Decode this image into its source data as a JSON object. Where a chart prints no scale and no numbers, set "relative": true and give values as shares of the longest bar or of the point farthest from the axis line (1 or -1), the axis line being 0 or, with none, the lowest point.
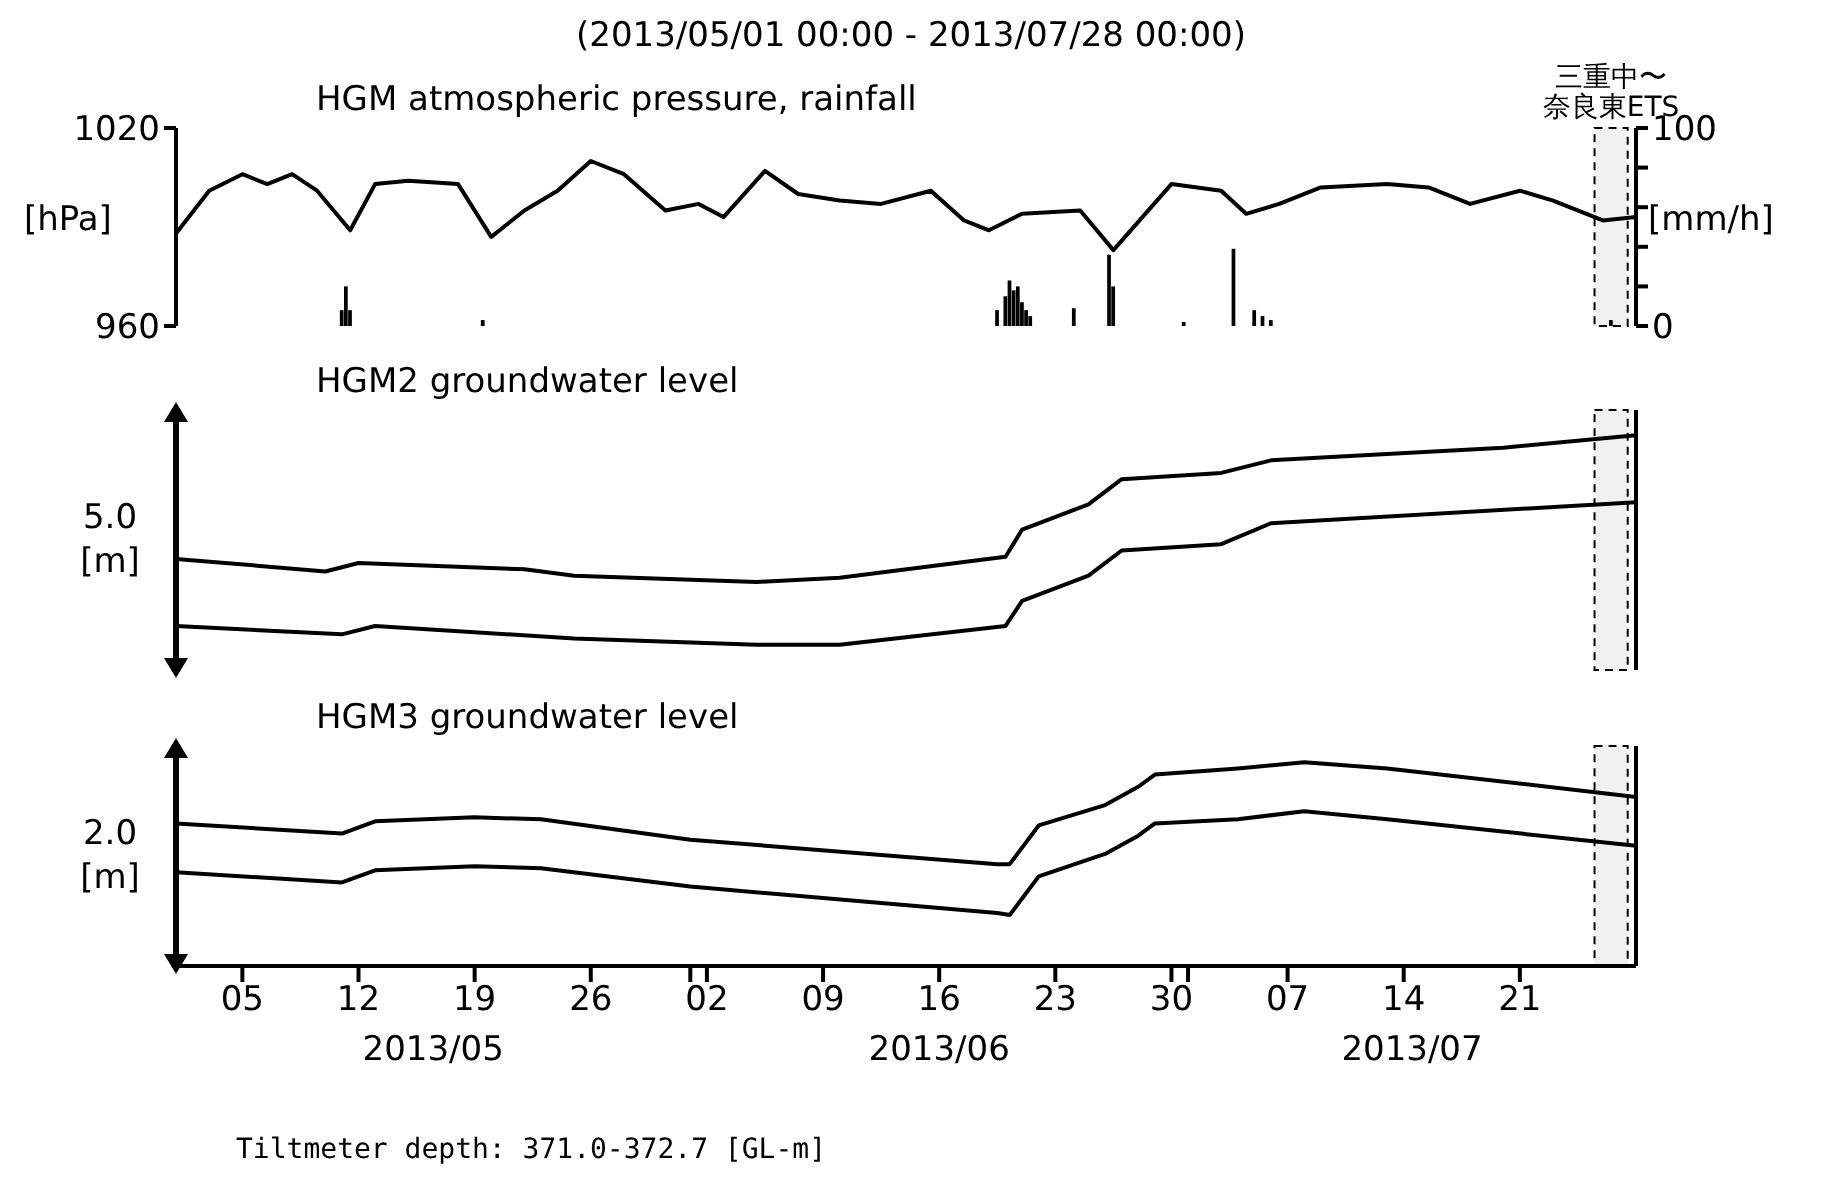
{
  "chart_data": [
    {
      "type": "line",
      "title": "(2013/05/01 00:00 - 2013/07/28 00:00)",
      "subtitle": "HGM atmospheric pressure, rainfall",
      "ylabel": "[hPa]",
      "y2label": "[mm/h]",
      "xlim": [
        "2013-05-01",
        "2013-07-28"
      ],
      "ylim": [
        960,
        1020
      ],
      "yticks": [
        960,
        1020
      ],
      "y2lim": [
        0,
        100
      ],
      "y2ticks": [
        0,
        {
          "value": 20,
          "label": null
        },
        {
          "value": 40,
          "label": null
        },
        {
          "value": 60,
          "label": null
        },
        {
          "value": 80,
          "label": null
        },
        100
      ],
      "tick_labels": "y",
      "bands": [
        {
          "axis": "x",
          "from": "2013-07-25T12:00",
          "to": "2013-07-27T12:00",
          "label": "三重中〜奈良東ETS",
          "color": "#eeeeee"
        }
      ],
      "series": [
        {
          "color": "#000000",
          "x": [
            "2013-05-01",
            "2013-05-03",
            "2013-05-05",
            "2013-05-06T12:00",
            "2013-05-08",
            "2013-05-09T12:00",
            "2013-05-11T12:00",
            "2013-05-13",
            "2013-05-15",
            "2013-05-18",
            "2013-05-20",
            "2013-05-22",
            "2013-05-24",
            "2013-05-26",
            "2013-05-28",
            "2013-05-30T12:00",
            "2013-06-01T12:00",
            "2013-06-03",
            "2013-06-05T12:00",
            "2013-06-07T12:00",
            "2013-06-10",
            "2013-06-12T12:00",
            "2013-06-15T12:00",
            "2013-06-17T12:00",
            "2013-06-19",
            "2013-06-21",
            "2013-06-24T12:00",
            "2013-06-26T12:00",
            "2013-06-30",
            "2013-07-03",
            "2013-07-04T12:00",
            "2013-07-06T12:00",
            "2013-07-09",
            "2013-07-13",
            "2013-07-15T12:00",
            "2013-07-18",
            "2013-07-21",
            "2013-07-23",
            "2013-07-26",
            "2013-07-28"
          ],
          "values": [
            988,
            1001,
            1006,
            1003,
            1006,
            1001,
            989,
            1003,
            1004,
            1003,
            987,
            995,
            1001,
            1010,
            1006,
            995,
            997,
            993,
            1007,
            1000,
            998,
            997,
            1001,
            992,
            989,
            994,
            995,
            983,
            1003,
            1001,
            994,
            997,
            1002,
            1003,
            1002,
            997,
            1001,
            998,
            992,
            993
          ]
        },
        {
          "type": "bar",
          "axis": "y2",
          "color": "#000000",
          "x": [
            "2013-05-11",
            "2013-05-11T06:00",
            "2013-05-11T12:00",
            "2013-05-19T12:00",
            "2013-06-19T12:00",
            "2013-06-20",
            "2013-06-20T06:00",
            "2013-06-20T12:00",
            "2013-06-20T18:00",
            "2013-06-21",
            "2013-06-21T06:00",
            "2013-06-21T12:00",
            "2013-06-24T03:00",
            "2013-06-26T06:00",
            "2013-06-26T12:00",
            "2013-06-30T18:00",
            "2013-07-03T18:00",
            "2013-07-05",
            "2013-07-05T12:00",
            "2013-07-06",
            "2013-07-26T12:00"
          ],
          "values": [
            8,
            20,
            8,
            3,
            8,
            15,
            23,
            18,
            20,
            12,
            8,
            5,
            9,
            36,
            20,
            2,
            39,
            8,
            5,
            3,
            3
          ]
        }
      ]
    },
    {
      "type": "line",
      "title": "HGM2 groundwater level",
      "relative": true,
      "xlim": [
        "2013-05-01",
        "2013-07-28"
      ],
      "tick_labels": false,
      "annotations": [
        "5.0 [m]"
      ],
      "bands": [
        {
          "axis": "x",
          "from": "2013-07-25T12:00",
          "to": "2013-07-27T12:00",
          "color": "#eeeeee"
        }
      ],
      "series": [
        {
          "color": "#000000",
          "x": [
            "2013-05-01",
            "2013-05-10",
            "2013-05-12",
            "2013-05-22",
            "2013-05-25",
            "2013-06-05",
            "2013-06-10",
            "2013-06-20",
            "2013-06-21",
            "2013-06-25",
            "2013-06-27",
            "2013-07-03",
            "2013-07-06",
            "2013-07-20",
            "2013-07-28"
          ],
          "values": [
            0.41,
            0.35,
            0.39,
            0.36,
            0.33,
            0.3,
            0.32,
            0.42,
            0.55,
            0.67,
            0.79,
            0.82,
            0.88,
            0.94,
            1
          ]
        },
        {
          "color": "#000000",
          "x": [
            "2013-05-01",
            "2013-05-11",
            "2013-05-13",
            "2013-05-25",
            "2013-06-05",
            "2013-06-10",
            "2013-06-20",
            "2013-06-21",
            "2013-06-25",
            "2013-06-27",
            "2013-07-03",
            "2013-07-06",
            "2013-07-28"
          ],
          "values": [
            0.09,
            0.05,
            0.09,
            0.03,
            0,
            0,
            0.09,
            0.21,
            0.33,
            0.45,
            0.48,
            0.58,
            0.68
          ]
        }
      ]
    },
    {
      "type": "line",
      "title": "HGM3 groundwater level",
      "relative": true,
      "xlim": [
        "2013-05-01",
        "2013-07-28"
      ],
      "tick_labels": "x",
      "xticks": [
        {
          "value": "2013-05-05",
          "label": "05"
        },
        {
          "value": "2013-05-12",
          "label": "12"
        },
        {
          "value": "2013-05-19",
          "label": "19"
        },
        {
          "value": "2013-05-26",
          "label": "26"
        },
        {
          "value": "2013-06-01",
          "label": null
        },
        {
          "value": "2013-06-02",
          "label": "02"
        },
        {
          "value": "2013-06-09",
          "label": "09"
        },
        {
          "value": "2013-06-16",
          "label": "16"
        },
        {
          "value": "2013-06-23",
          "label": "23"
        },
        {
          "value": "2013-06-30",
          "label": "30"
        },
        {
          "value": "2013-07-01",
          "label": null
        },
        {
          "value": "2013-07-07",
          "label": "07"
        },
        {
          "value": "2013-07-14",
          "label": "14"
        },
        {
          "value": "2013-07-21",
          "label": "21"
        }
      ],
      "annotations": [
        "2.0 [m]",
        "2013/05",
        "2013/06",
        "2013/07",
        "Tiltmeter depth: 371.0-372.7 [GL-m]"
      ],
      "bands": [
        {
          "axis": "x",
          "from": "2013-07-25T12:00",
          "to": "2013-07-27T12:00",
          "color": "#eeeeee"
        }
      ],
      "series": [
        {
          "color": "#000000",
          "x": [
            "2013-05-01",
            "2013-05-11",
            "2013-05-13",
            "2013-05-19",
            "2013-05-23",
            "2013-06-01",
            "2013-06-19T12:00",
            "2013-06-20T06:00",
            "2013-06-22",
            "2013-06-26",
            "2013-06-28",
            "2013-06-29",
            "2013-07-04",
            "2013-07-08",
            "2013-07-13",
            "2013-07-28"
          ],
          "values": [
            0.7,
            0.65,
            0.71,
            0.73,
            0.72,
            0.62,
            0.5,
            0.5,
            0.69,
            0.79,
            0.88,
            0.94,
            0.97,
            1,
            0.97,
            0.83
          ]
        },
        {
          "color": "#000000",
          "x": [
            "2013-05-01",
            "2013-05-11",
            "2013-05-13",
            "2013-05-19",
            "2013-05-23",
            "2013-06-01",
            "2013-06-19T12:00",
            "2013-06-20T06:00",
            "2013-06-22",
            "2013-06-26",
            "2013-06-28",
            "2013-06-29",
            "2013-07-04",
            "2013-07-08",
            "2013-07-13",
            "2013-07-28"
          ],
          "values": [
            0.46,
            0.41,
            0.47,
            0.49,
            0.48,
            0.39,
            0.26,
            0.25,
            0.44,
            0.55,
            0.64,
            0.7,
            0.72,
            0.76,
            0.72,
            0.59
          ]
        }
      ]
    }
  ]
}
